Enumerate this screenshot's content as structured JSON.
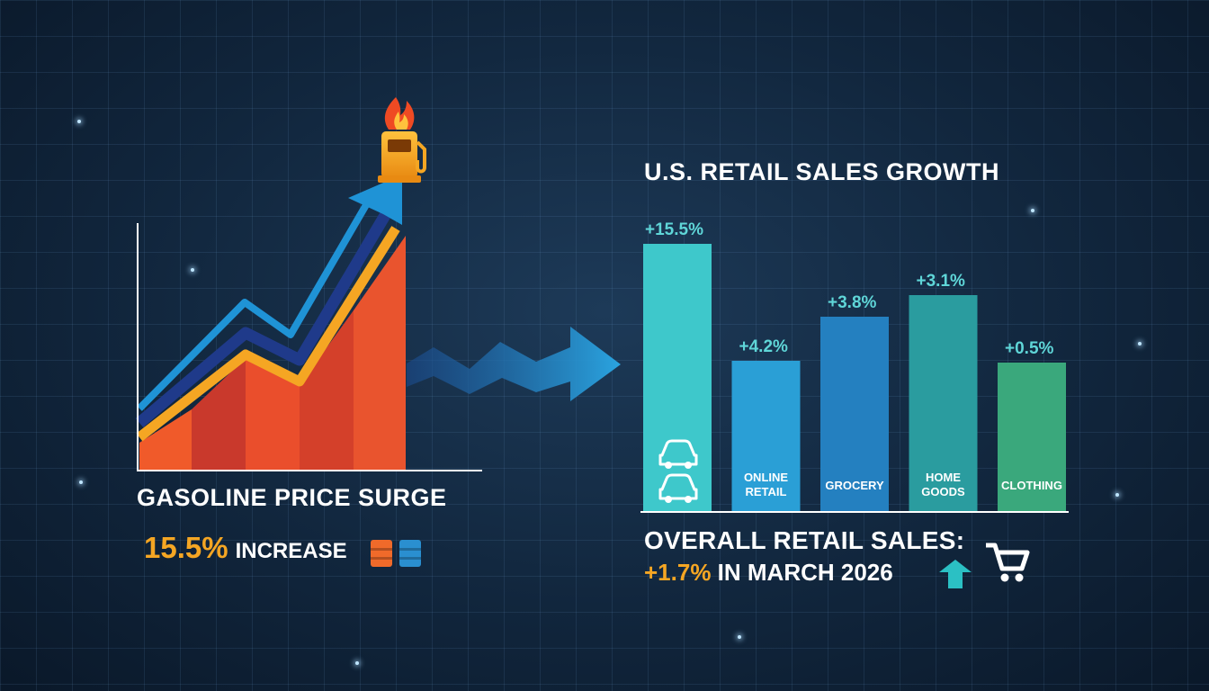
{
  "gasoline": {
    "title": "GASOLINE PRICE SURGE",
    "increase_value": "15.5%",
    "increase_label": "INCREASE",
    "colors": {
      "area": "#e8532b",
      "orange_line": "#f5a623",
      "blue_line": "#1f93d6",
      "navy_line": "#1f3a8a"
    }
  },
  "icons": [
    "gas-pump-icon",
    "fire-icon",
    "car-icon",
    "barrel-icon",
    "shopping-cart-icon",
    "up-arrow-icon",
    "trend-arrow-icon"
  ],
  "chart_data": {
    "type": "bar",
    "title": "U.S. RETAIL SALES GROWTH",
    "categories": [
      "",
      "ONLINE\nRETAIL",
      "GROCERY",
      "HOME\nGOODS",
      "CLOTHING"
    ],
    "values": [
      15.5,
      4.2,
      3.8,
      3.1,
      0.5
    ],
    "value_labels": [
      "+15.5%",
      "+4.2%",
      "+3.8%",
      "+3.1%",
      "+0.5%"
    ],
    "colors": [
      "#3ec8cb",
      "#2a9fd6",
      "#2480c0",
      "#2a9c9f",
      "#3aa87c"
    ]
  },
  "summary": {
    "line1": "OVERALL RETAIL SALES:",
    "pct": "+1.7%",
    "rest": " IN MARCH 2026",
    "arrow_color": "#2bc0c4"
  }
}
